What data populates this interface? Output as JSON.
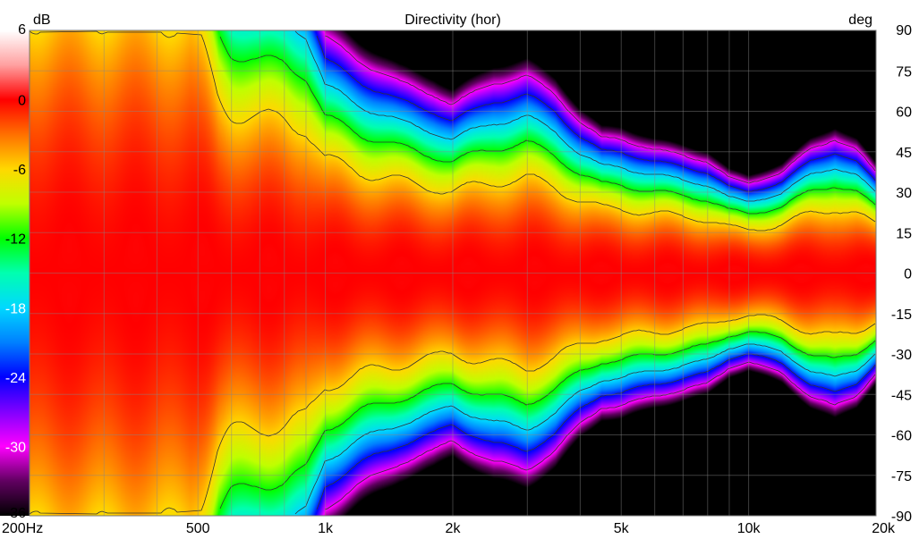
{
  "chart_data": {
    "type": "heatmap",
    "title": "Directivity (hor)",
    "colorbar_unit": "dB",
    "y_unit": "deg",
    "x_scale": "log",
    "x_range": [
      200,
      20000
    ],
    "y_range": [
      -90,
      90
    ],
    "x_tick_values": [
      200,
      500,
      1000,
      2000,
      5000,
      10000,
      20000
    ],
    "x_tick_labels": [
      "200Hz",
      "500",
      "1k",
      "2k",
      "5k",
      "10k",
      "20k"
    ],
    "y_tick_values": [
      90,
      75,
      60,
      45,
      30,
      15,
      0,
      -15,
      -30,
      -45,
      -60,
      -75,
      -90
    ],
    "y_tick_labels": [
      "90",
      "75",
      "60",
      "45",
      "30",
      "15",
      "0",
      "-15",
      "-30",
      "-45",
      "-60",
      "-75",
      "-90"
    ],
    "colorbar_range": [
      -36,
      6
    ],
    "colorbar_tick_values": [
      6,
      0,
      -6,
      -12,
      -18,
      -24,
      -30,
      -36
    ],
    "colorbar_tick_labels": [
      "6",
      "0",
      "-6",
      "-12",
      "-18",
      "-24",
      "-30",
      "-36"
    ],
    "contour_step_db": -6,
    "colormap": [
      {
        "db": 6,
        "color": "#ffffff"
      },
      {
        "db": 3,
        "color": "#ffa0a0"
      },
      {
        "db": 0,
        "color": "#ff0000"
      },
      {
        "db": -3,
        "color": "#ff7000"
      },
      {
        "db": -6,
        "color": "#ffd800"
      },
      {
        "db": -9,
        "color": "#c0ff00"
      },
      {
        "db": -12,
        "color": "#00ff00"
      },
      {
        "db": -15,
        "color": "#00ffb0"
      },
      {
        "db": -18,
        "color": "#00d8ff"
      },
      {
        "db": -21,
        "color": "#0080ff"
      },
      {
        "db": -24,
        "color": "#0000ff"
      },
      {
        "db": -27,
        "color": "#8000ff"
      },
      {
        "db": -30,
        "color": "#ff00ff"
      },
      {
        "db": -33,
        "color": "#600060"
      },
      {
        "db": -36,
        "color": "#000000"
      }
    ],
    "beamwidth_profile": {
      "frequencies_hz": [
        200,
        300,
        400,
        480,
        520,
        560,
        600,
        700,
        800,
        900,
        1000,
        1200,
        1500,
        1800,
        2000,
        2500,
        3000,
        3500,
        4000,
        4500,
        5000,
        6000,
        7000,
        8000,
        9000,
        10000,
        12000,
        14000,
        16000,
        18000,
        20000
      ],
      "minus6db_angle_deg": [
        95,
        95,
        94,
        93,
        80,
        65,
        60,
        57,
        57,
        54,
        42,
        38,
        34,
        32,
        30,
        34,
        35,
        32,
        27,
        24,
        24,
        22,
        21,
        20,
        17,
        16,
        18,
        22,
        24,
        22,
        18
      ]
    }
  }
}
